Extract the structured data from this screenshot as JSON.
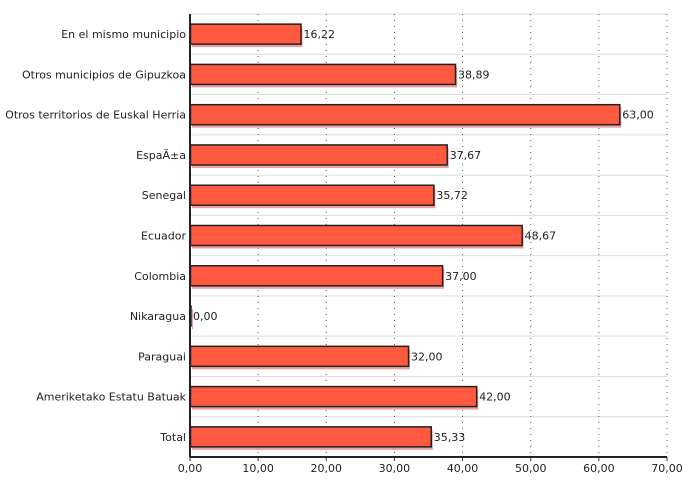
{
  "chart_data": {
    "type": "bar",
    "orientation": "horizontal",
    "categories": [
      "En el mismo municipio",
      "Otros municipios de Gipuzkoa",
      "Otros territorios de Euskal Herria",
      "EspaÃ±a",
      "Senegal",
      "Ecuador",
      "Colombia",
      "Nikaragua",
      "Paraguai",
      "Ameriketako Estatu Batuak",
      "Total"
    ],
    "values": [
      16.22,
      38.89,
      63.0,
      37.67,
      35.72,
      48.67,
      37.0,
      0.0,
      32.0,
      42.0,
      35.33
    ],
    "value_labels": [
      "16,22",
      "38,89",
      "63,00",
      "37,67",
      "35,72",
      "48,67",
      "37,00",
      "0,00",
      "32,00",
      "42,00",
      "35,33"
    ],
    "xlim": [
      0,
      70
    ],
    "x_ticks": [
      0,
      10,
      20,
      30,
      40,
      50,
      60,
      70
    ],
    "x_tick_labels": [
      "0,00",
      "10,00",
      "20,00",
      "30,00",
      "40,00",
      "50,00",
      "60,00",
      "70,00"
    ],
    "grid": true,
    "colors": {
      "bar": "#ff5a3f",
      "bar_border": "#222222",
      "shadow": "#e8a0a0"
    }
  }
}
